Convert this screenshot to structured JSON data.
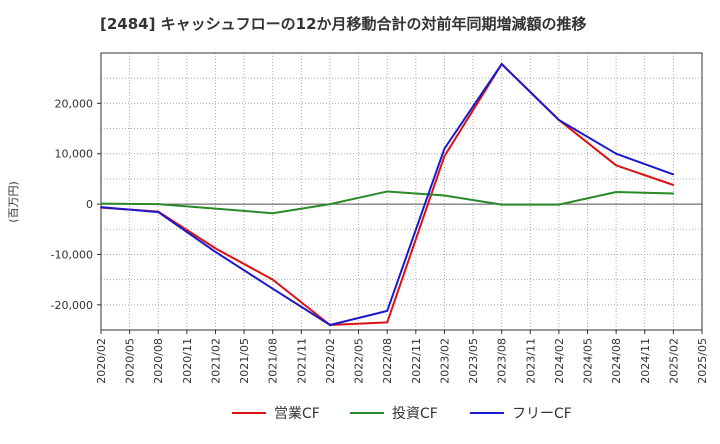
{
  "chart_data": {
    "type": "line",
    "title": "[2484]  キャッシュフローの12か月移動合計の対前年同期増減額の推移",
    "ylabel": "(百万円)",
    "xlabel": "",
    "ylim": [
      -25000,
      30000
    ],
    "yticks": [
      -20000,
      -10000,
      0,
      10000,
      20000
    ],
    "ytick_labels": [
      "-20,000",
      "-10,000",
      "0",
      "10,000",
      "20,000"
    ],
    "x_tick_labels": [
      "2020/02",
      "2020/05",
      "2020/08",
      "2020/11",
      "2021/02",
      "2021/05",
      "2021/08",
      "2021/11",
      "2022/02",
      "2022/05",
      "2022/08",
      "2022/11",
      "2023/02",
      "2023/05",
      "2023/08",
      "2023/11",
      "2024/02",
      "2024/05",
      "2024/08",
      "2024/11",
      "2025/02",
      "2025/05"
    ],
    "grid": true,
    "legend_position": "bottom-center",
    "series": [
      {
        "name": "営業CF",
        "color": "#dd1111",
        "points": [
          {
            "x": "2020/02",
            "y": -700
          },
          {
            "x": "2020/08",
            "y": -1500
          },
          {
            "x": "2021/02",
            "y": -8800
          },
          {
            "x": "2021/08",
            "y": -15000
          },
          {
            "x": "2022/02",
            "y": -24000
          },
          {
            "x": "2022/08",
            "y": -23500
          },
          {
            "x": "2023/02",
            "y": 9500
          },
          {
            "x": "2023/08",
            "y": 27800
          },
          {
            "x": "2024/02",
            "y": 16700
          },
          {
            "x": "2024/08",
            "y": 7700
          },
          {
            "x": "2025/02",
            "y": 3800
          }
        ]
      },
      {
        "name": "投資CF",
        "color": "#2a8a2a",
        "points": [
          {
            "x": "2020/02",
            "y": 100
          },
          {
            "x": "2020/08",
            "y": 0
          },
          {
            "x": "2021/02",
            "y": -900
          },
          {
            "x": "2021/08",
            "y": -1800
          },
          {
            "x": "2022/02",
            "y": 0
          },
          {
            "x": "2022/08",
            "y": 2500
          },
          {
            "x": "2023/02",
            "y": 1700
          },
          {
            "x": "2023/08",
            "y": -100
          },
          {
            "x": "2024/02",
            "y": -100
          },
          {
            "x": "2024/08",
            "y": 2400
          },
          {
            "x": "2025/02",
            "y": 2100
          }
        ]
      },
      {
        "name": "フリーCF",
        "color": "#1a1acc",
        "points": [
          {
            "x": "2020/02",
            "y": -600
          },
          {
            "x": "2020/08",
            "y": -1600
          },
          {
            "x": "2021/02",
            "y": -9500
          },
          {
            "x": "2021/08",
            "y": -16800
          },
          {
            "x": "2022/02",
            "y": -24000
          },
          {
            "x": "2022/08",
            "y": -21200
          },
          {
            "x": "2023/02",
            "y": 11000
          },
          {
            "x": "2023/08",
            "y": 27800
          },
          {
            "x": "2024/02",
            "y": 16700
          },
          {
            "x": "2024/08",
            "y": 10000
          },
          {
            "x": "2025/02",
            "y": 5900
          }
        ]
      }
    ]
  }
}
